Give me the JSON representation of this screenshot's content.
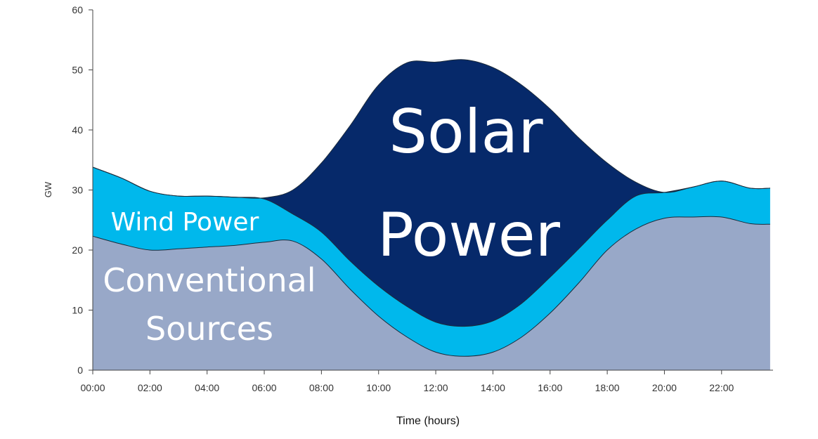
{
  "chart_data": {
    "type": "area",
    "stacked": true,
    "xlabel": "Time (hours)",
    "ylabel": "GW",
    "ylim": [
      0,
      60
    ],
    "y_ticks": [
      0,
      10,
      20,
      30,
      40,
      50,
      60
    ],
    "x_tick_labels": [
      "00:00",
      "02:00",
      "04:00",
      "06:00",
      "08:00",
      "10:00",
      "12:00",
      "14:00",
      "16:00",
      "18:00",
      "20:00",
      "22:00"
    ],
    "grid": false,
    "x_hours": [
      0,
      1,
      2,
      3,
      4,
      5,
      6,
      7,
      8,
      9,
      10,
      11,
      12,
      13,
      14,
      15,
      16,
      17,
      18,
      19,
      20,
      21,
      22,
      23,
      23.7
    ],
    "series": [
      {
        "name": "Conventional Sources",
        "color": "#98a8c8",
        "values": [
          22.3,
          21,
          20,
          20.2,
          20.5,
          20.8,
          21.3,
          21.5,
          18.5,
          13.5,
          9,
          5.5,
          3,
          2.3,
          3,
          5.5,
          9.5,
          14.5,
          20,
          23.5,
          25.3,
          25.5,
          25.5,
          24.4,
          24.3
        ]
      },
      {
        "name": "Wind Power",
        "color": "#00b8ec",
        "values": [
          11.5,
          11,
          9.8,
          8.8,
          8.5,
          8.0,
          7.2,
          4.5,
          4.5,
          4.7,
          5.0,
          5.1,
          5.0,
          5.0,
          5.2,
          5.6,
          6.0,
          5.7,
          5.0,
          5.5,
          4.3,
          5.0,
          6.0,
          5.9,
          6.0
        ]
      },
      {
        "name": "Solar Power",
        "color": "#06296a",
        "values": [
          0,
          0,
          0,
          0,
          0,
          0,
          0.2,
          4.0,
          11.5,
          22.5,
          33.5,
          40.6,
          43.3,
          44.4,
          42.2,
          36.4,
          28.0,
          18.5,
          9.5,
          2.3,
          0,
          0,
          0,
          0,
          0
        ]
      }
    ],
    "overlay_labels": {
      "solar_line1": "Solar",
      "solar_line2": "Power",
      "wind": "Wind Power",
      "conventional_line1": "Conventional",
      "conventional_line2": "Sources"
    }
  }
}
